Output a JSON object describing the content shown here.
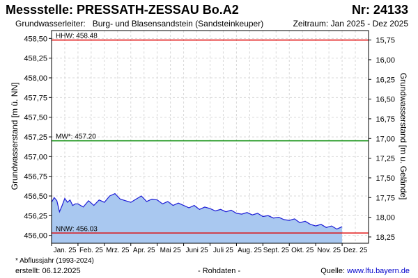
{
  "header": {
    "station": "Messstelle: PRESSATH-ZESSAU Bo.A2",
    "number": "Nr: 24133",
    "aquifer_label": "Grundwasserleiter:",
    "aquifer_value": "Burg- und Blasensandstein (Sandsteinkeuper)",
    "period": "Zeitraum: Jan 2025 - Dez 2025"
  },
  "footer": {
    "note": "* Abflussjahr (1993-2024)",
    "created": "erstellt:  06.12.2025",
    "raw": "- Rohdaten -",
    "source_label": "Quelle: ",
    "source_url": "www.lfu.bayern.de"
  },
  "colors": {
    "area_fill": "#a9c8f0",
    "line": "#1c1cd6",
    "hhw": "#e00000",
    "mw": "#008800",
    "nnw": "#e00000",
    "grid": "#d8d8d8"
  },
  "chart_data": {
    "type": "area",
    "ylabel_left": "Grundwasserstand [m ü. NN]",
    "ylabel_right": "Grundwasserstand [m u. Gelände]",
    "ylim_left": [
      455.9,
      458.6
    ],
    "ylim_right_inverted": [
      15.63,
      18.33
    ],
    "left_ticks": [
      "458,50",
      "458,25",
      "458,00",
      "457,75",
      "457,50",
      "457,25",
      "457,00",
      "456,75",
      "456,50",
      "456,25",
      "456,00"
    ],
    "left_tick_values": [
      458.5,
      458.25,
      458.0,
      457.75,
      457.5,
      457.25,
      457.0,
      456.75,
      456.5,
      456.25,
      456.0
    ],
    "right_ticks": [
      "15,75",
      "16,00",
      "16,25",
      "16,50",
      "16,75",
      "17,00",
      "17,25",
      "17,50",
      "17,75",
      "18,00",
      "18,25"
    ],
    "right_tick_values": [
      15.75,
      16.0,
      16.25,
      16.5,
      16.75,
      17.0,
      17.25,
      17.5,
      17.75,
      18.0,
      18.25
    ],
    "x_labels": [
      "Jan. 25",
      "Feb. 25",
      "Mrz. 25",
      "Apr. 25",
      "Mai 25",
      "Juni 25",
      "Juli 25",
      "Aug. 25",
      "Sept. 25",
      "Okt. 25",
      "Nov. 25",
      "Dez. 25"
    ],
    "x_label_months": [
      0,
      1,
      2,
      3,
      4,
      5,
      6,
      7,
      8,
      9,
      10,
      11
    ],
    "x_range_months": [
      0,
      12
    ],
    "grid": true,
    "reference_lines": [
      {
        "label": "HHW: 458.48",
        "value": 458.48,
        "color": "hhw"
      },
      {
        "label": "MW*: 457.20",
        "value": 457.2,
        "color": "mw"
      },
      {
        "label": "NNW: 456.03",
        "value": 456.03,
        "color": "nnw"
      }
    ],
    "series": [
      {
        "x_months": [
          0.0,
          0.1,
          0.2,
          0.3,
          0.4,
          0.5,
          0.6,
          0.7,
          0.8,
          0.9,
          1.0,
          1.2,
          1.4,
          1.6,
          1.8,
          2.0,
          2.2,
          2.4,
          2.6,
          2.8,
          3.0,
          3.2,
          3.4,
          3.6,
          3.8,
          4.0,
          4.2,
          4.4,
          4.6,
          4.8,
          5.0,
          5.2,
          5.4,
          5.6,
          5.8,
          6.0,
          6.2,
          6.4,
          6.6,
          6.8,
          7.0,
          7.2,
          7.4,
          7.6,
          7.8,
          8.0,
          8.2,
          8.4,
          8.6,
          8.8,
          9.0,
          9.2,
          9.4,
          9.6,
          9.8,
          10.0,
          10.2,
          10.4,
          10.6,
          10.8,
          11.0
        ],
        "values": [
          456.42,
          456.48,
          456.44,
          456.3,
          456.38,
          456.47,
          456.42,
          456.45,
          456.38,
          456.4,
          456.4,
          456.36,
          456.44,
          456.38,
          456.45,
          456.42,
          456.5,
          456.53,
          456.46,
          456.44,
          456.42,
          456.46,
          456.5,
          456.43,
          456.46,
          456.45,
          456.4,
          456.43,
          456.38,
          456.41,
          456.38,
          456.35,
          456.38,
          456.33,
          456.36,
          456.34,
          456.31,
          456.33,
          456.3,
          456.32,
          456.28,
          456.27,
          456.29,
          456.26,
          456.28,
          456.24,
          456.25,
          456.22,
          456.23,
          456.2,
          456.19,
          456.21,
          456.16,
          456.18,
          456.14,
          456.12,
          456.14,
          456.1,
          456.12,
          456.08,
          456.11
        ]
      }
    ]
  }
}
